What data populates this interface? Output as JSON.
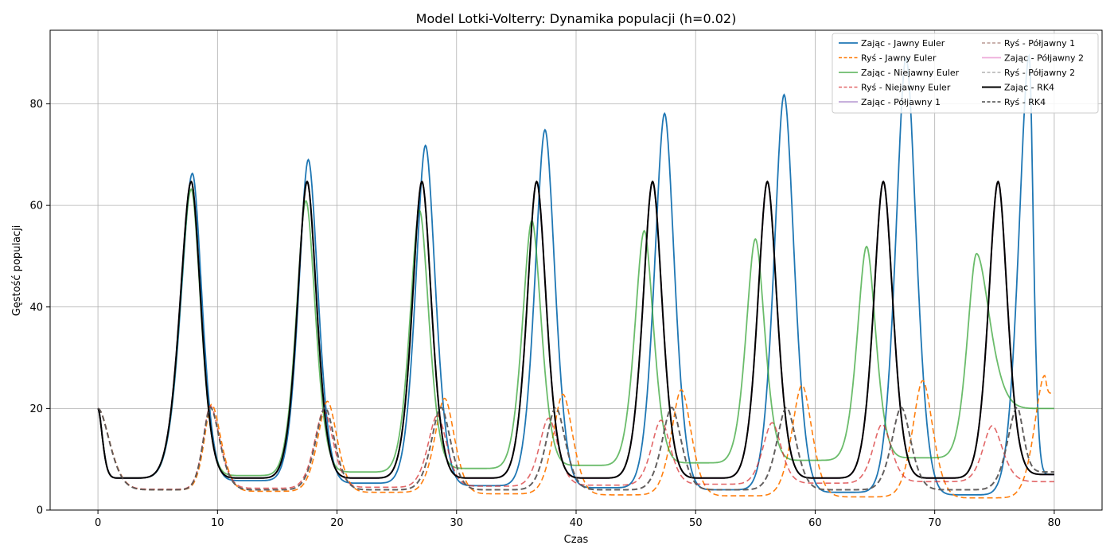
{
  "chart_data": {
    "type": "line",
    "title": "Model Lotki-Volterry: Dynamika populacji (h=0.02)",
    "xlabel": "Czas",
    "ylabel": "Gęstość populacji",
    "xlim": [
      -4,
      84
    ],
    "ylim": [
      0,
      94.5
    ],
    "xticks": [
      0,
      10,
      20,
      30,
      40,
      50,
      60,
      70,
      80
    ],
    "yticks": [
      0,
      20,
      40,
      60,
      80
    ],
    "grid": true,
    "legend_position": "top-right",
    "series": [
      {
        "name": "Zając - Jawny Euler",
        "color": "#1f77b4",
        "dash": "solid",
        "width": 1.8,
        "opacity": 1,
        "peak_t": [
          7.9,
          17.6,
          27.4,
          37.4,
          47.4,
          57.4,
          67.6,
          77.9
        ],
        "peak_v": [
          66.3,
          69.0,
          71.8,
          74.9,
          78.1,
          81.8,
          89.0,
          89.5
        ],
        "trough_v": [
          5.8,
          5.3,
          4.8,
          4.4,
          4.0,
          3.5,
          3.0
        ],
        "start": 20,
        "end": 7
      },
      {
        "name": "Ryś - Jawny Euler",
        "color": "#ff7f0e",
        "dash": "7,4",
        "width": 1.6,
        "opacity": 1,
        "peak_t": [
          9.5,
          19.2,
          29.0,
          38.9,
          48.8,
          58.9,
          69.0,
          79.2
        ],
        "peak_v": [
          20.8,
          21.4,
          22.0,
          22.8,
          23.7,
          24.6,
          25.5,
          26.5
        ],
        "trough_v": [
          4.0,
          3.7,
          3.5,
          3.2,
          3.0,
          2.8,
          2.6,
          2.4
        ],
        "start": 20,
        "end": 23
      },
      {
        "name": "Zając - Niejawny Euler",
        "color": "#2ca02c",
        "dash": "solid",
        "width": 1.8,
        "opacity": 0.7,
        "peak_t": [
          7.8,
          17.4,
          26.9,
          36.3,
          45.7,
          55.0,
          64.3,
          73.5
        ],
        "peak_v": [
          63.2,
          60.9,
          59.0,
          57.0,
          55.0,
          53.4,
          51.9,
          50.5
        ],
        "trough_v": [
          6.8,
          7.5,
          8.2,
          8.8,
          9.3,
          9.8,
          10.3
        ],
        "start": 20,
        "end": 20
      },
      {
        "name": "Ryś - Niejawny Euler",
        "color": "#d62728",
        "dash": "7,4",
        "width": 1.6,
        "opacity": 0.7,
        "peak_t": [
          9.4,
          18.9,
          28.4,
          37.7,
          47.1,
          56.4,
          65.6,
          74.8
        ],
        "peak_v": [
          20.5,
          19.6,
          18.7,
          18.1,
          17.7,
          17.2,
          16.9,
          16.6
        ],
        "trough_v": [
          4.1,
          4.3,
          4.5,
          4.7,
          4.9,
          5.1,
          5.3,
          5.6
        ],
        "start": 20,
        "end": 5.6
      },
      {
        "name": "Zając - Półjawny 1",
        "color": "#9467bd",
        "dash": "solid",
        "width": 1.8,
        "opacity": 0.6,
        "peak_t": [
          7.8,
          17.5,
          27.1,
          36.7,
          46.4,
          56.0,
          65.7,
          75.3
        ],
        "peak_v": [
          64.7,
          64.7,
          64.7,
          64.7,
          64.7,
          64.7,
          64.7,
          64.7
        ],
        "trough_v": [
          6.3,
          6.3,
          6.3,
          6.3,
          6.3,
          6.3,
          6.3
        ],
        "start": 20,
        "end": 7
      },
      {
        "name": "Ryś - Półjawny 1",
        "color": "#8c564b",
        "dash": "7,4",
        "width": 1.6,
        "opacity": 0.6,
        "peak_t": [
          9.4,
          19.0,
          28.7,
          38.3,
          48.0,
          57.6,
          67.2,
          76.9
        ],
        "peak_v": [
          20.2,
          20.2,
          20.2,
          20.2,
          20.2,
          20.2,
          20.2,
          20.2
        ],
        "trough_v": [
          4.0,
          4.0,
          4.0,
          4.0,
          4.0,
          4.0,
          4.0,
          4.0
        ],
        "start": 20,
        "end": 7.5
      },
      {
        "name": "Zając - Półjawny 2",
        "color": "#e377c2",
        "dash": "solid",
        "width": 1.8,
        "opacity": 0.6,
        "peak_t": [
          7.8,
          17.5,
          27.1,
          36.7,
          46.4,
          56.0,
          65.7,
          75.3
        ],
        "peak_v": [
          64.7,
          64.7,
          64.7,
          64.7,
          64.7,
          64.7,
          64.7,
          64.7
        ],
        "trough_v": [
          6.3,
          6.3,
          6.3,
          6.3,
          6.3,
          6.3,
          6.3
        ],
        "start": 20,
        "end": 7
      },
      {
        "name": "Ryś - Półjawny 2",
        "color": "#7f7f7f",
        "dash": "7,4",
        "width": 1.6,
        "opacity": 0.6,
        "peak_t": [
          9.4,
          19.0,
          28.7,
          38.3,
          48.0,
          57.6,
          67.2,
          76.9
        ],
        "peak_v": [
          20.2,
          20.2,
          20.2,
          20.2,
          20.2,
          20.2,
          20.2,
          20.2
        ],
        "trough_v": [
          4.0,
          4.0,
          4.0,
          4.0,
          4.0,
          4.0,
          4.0,
          4.0
        ],
        "start": 20,
        "end": 7.5
      },
      {
        "name": "Zając - RK4",
        "color": "#000000",
        "dash": "solid",
        "width": 2.0,
        "opacity": 1,
        "peak_t": [
          7.8,
          17.5,
          27.1,
          36.7,
          46.4,
          56.0,
          65.7,
          75.3
        ],
        "peak_v": [
          64.7,
          64.7,
          64.7,
          64.7,
          64.7,
          64.7,
          64.7,
          64.7
        ],
        "trough_v": [
          6.3,
          6.3,
          6.3,
          6.3,
          6.3,
          6.3,
          6.3
        ],
        "start": 20,
        "end": 7
      },
      {
        "name": "Ryś - RK4",
        "color": "#555555",
        "dash": "7,4",
        "width": 2.0,
        "opacity": 0.8,
        "peak_t": [
          9.4,
          19.0,
          28.7,
          38.3,
          48.0,
          57.6,
          67.2,
          76.9
        ],
        "peak_v": [
          20.2,
          20.2,
          20.2,
          20.2,
          20.2,
          20.2,
          20.2,
          20.2
        ],
        "trough_v": [
          4.0,
          4.0,
          4.0,
          4.0,
          4.0,
          4.0,
          4.0,
          4.0
        ],
        "start": 20,
        "end": 7.5
      }
    ]
  }
}
